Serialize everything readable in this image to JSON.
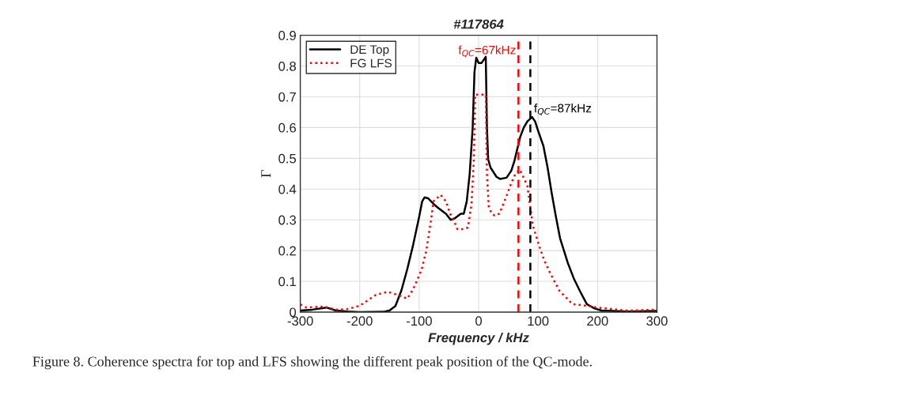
{
  "chart_data": {
    "type": "line",
    "title": "#117864",
    "xlabel": "Frequency / kHz",
    "ylabel": "Γ",
    "xlim": [
      -300,
      300
    ],
    "xticks": [
      -300,
      -200,
      -100,
      0,
      100,
      200,
      300
    ],
    "ylim": [
      0,
      0.9
    ],
    "yticks": [
      0,
      0.1,
      0.2,
      0.3,
      0.4,
      0.5,
      0.6,
      0.7,
      0.8,
      0.9
    ],
    "grid": true,
    "legend": "top left",
    "series": [
      {
        "name": "DE Top",
        "color": "#000000",
        "line_style": "solid",
        "x": [
          -300,
          -280,
          -256,
          -240,
          -220,
          -200,
          -160,
          -150,
          -140,
          -130,
          -120,
          -110,
          -100,
          -95,
          -91,
          -85,
          -75,
          -67,
          -55,
          -47,
          -40,
          -30,
          -25,
          -20,
          -15,
          -10,
          -7,
          -4,
          0,
          5,
          12,
          14,
          16,
          20,
          30,
          36,
          47,
          55,
          60,
          65,
          70,
          76,
          82,
          90,
          95,
          100,
          109,
          116,
          123,
          130,
          137,
          150,
          160,
          170,
          182,
          195,
          207,
          250,
          300
        ],
        "values": [
          0.005,
          0.008,
          0.015,
          0.005,
          0.002,
          0.0,
          0.001,
          0.005,
          0.02,
          0.07,
          0.14,
          0.22,
          0.31,
          0.36,
          0.373,
          0.37,
          0.35,
          0.337,
          0.32,
          0.3,
          0.305,
          0.32,
          0.32,
          0.36,
          0.45,
          0.6,
          0.78,
          0.827,
          0.81,
          0.81,
          0.83,
          0.6,
          0.497,
          0.47,
          0.44,
          0.433,
          0.437,
          0.46,
          0.49,
          0.53,
          0.57,
          0.6,
          0.62,
          0.634,
          0.62,
          0.59,
          0.54,
          0.47,
          0.386,
          0.31,
          0.24,
          0.16,
          0.11,
          0.07,
          0.026,
          0.012,
          0.005,
          0.002,
          0.004
        ]
      },
      {
        "name": "FG LFS",
        "color": "#ff0000",
        "line_style": "dotted",
        "x": [
          -300,
          -290,
          -260,
          -240,
          -220,
          -200,
          -185,
          -173,
          -153,
          -135,
          -120,
          -110,
          -96,
          -88,
          -80,
          -76,
          -64,
          -55,
          -48,
          -40,
          -36,
          -25,
          -18,
          -12,
          -8,
          -6,
          0,
          6,
          12,
          14,
          17,
          22,
          27,
          35,
          47,
          55,
          62,
          69,
          75,
          82,
          91,
          102,
          110,
          120,
          136,
          158,
          184,
          200,
          250,
          300
        ],
        "values": [
          0.025,
          0.015,
          0.018,
          0.008,
          0.01,
          0.021,
          0.04,
          0.056,
          0.066,
          0.055,
          0.044,
          0.075,
          0.137,
          0.2,
          0.3,
          0.36,
          0.381,
          0.36,
          0.32,
          0.29,
          0.27,
          0.27,
          0.275,
          0.35,
          0.5,
          0.707,
          0.707,
          0.707,
          0.707,
          0.45,
          0.343,
          0.32,
          0.314,
          0.32,
          0.378,
          0.42,
          0.45,
          0.463,
          0.44,
          0.41,
          0.283,
          0.214,
          0.17,
          0.128,
          0.069,
          0.026,
          0.02,
          0.015,
          0.005,
          0.008
        ]
      }
    ],
    "ref_lines": [
      {
        "axis": "x",
        "value": 67,
        "label": "f$_{QC}$=67kHz",
        "color": "#ff0000",
        "line_style": "dashed"
      },
      {
        "axis": "x",
        "value": 87,
        "label": "f$_{QC}$=87kHz",
        "color": "#000000",
        "line_style": "dashed"
      }
    ],
    "annotations": [
      "Figure 8. Coherence spectra for top and LFS showing the different peak position of the QC-mode."
    ]
  }
}
